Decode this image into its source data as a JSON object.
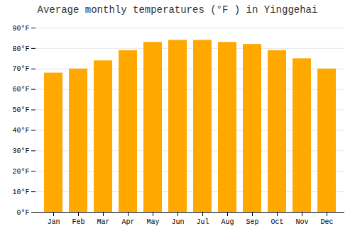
{
  "chart_data": {
    "type": "bar",
    "title": "Average monthly temperatures (°F ) in Yinggehai",
    "categories": [
      "Jan",
      "Feb",
      "Mar",
      "Apr",
      "May",
      "Jun",
      "Jul",
      "Aug",
      "Sep",
      "Oct",
      "Nov",
      "Dec"
    ],
    "values": [
      68,
      70,
      74,
      79,
      83,
      84,
      84,
      83,
      82,
      79,
      75,
      70
    ],
    "color": "#FFA800",
    "ylim": [
      0,
      90
    ],
    "yticks": [
      {
        "value": 0,
        "label": "0°F"
      },
      {
        "value": 10,
        "label": "10°F"
      },
      {
        "value": 20,
        "label": "20°F"
      },
      {
        "value": 30,
        "label": "30°F"
      },
      {
        "value": 40,
        "label": "40°F"
      },
      {
        "value": 50,
        "label": "50°F"
      },
      {
        "value": 60,
        "label": "60°F"
      },
      {
        "value": 70,
        "label": "70°F"
      },
      {
        "value": 80,
        "label": "80°F"
      },
      {
        "value": 90,
        "label": "90°F"
      }
    ],
    "grid": true
  }
}
